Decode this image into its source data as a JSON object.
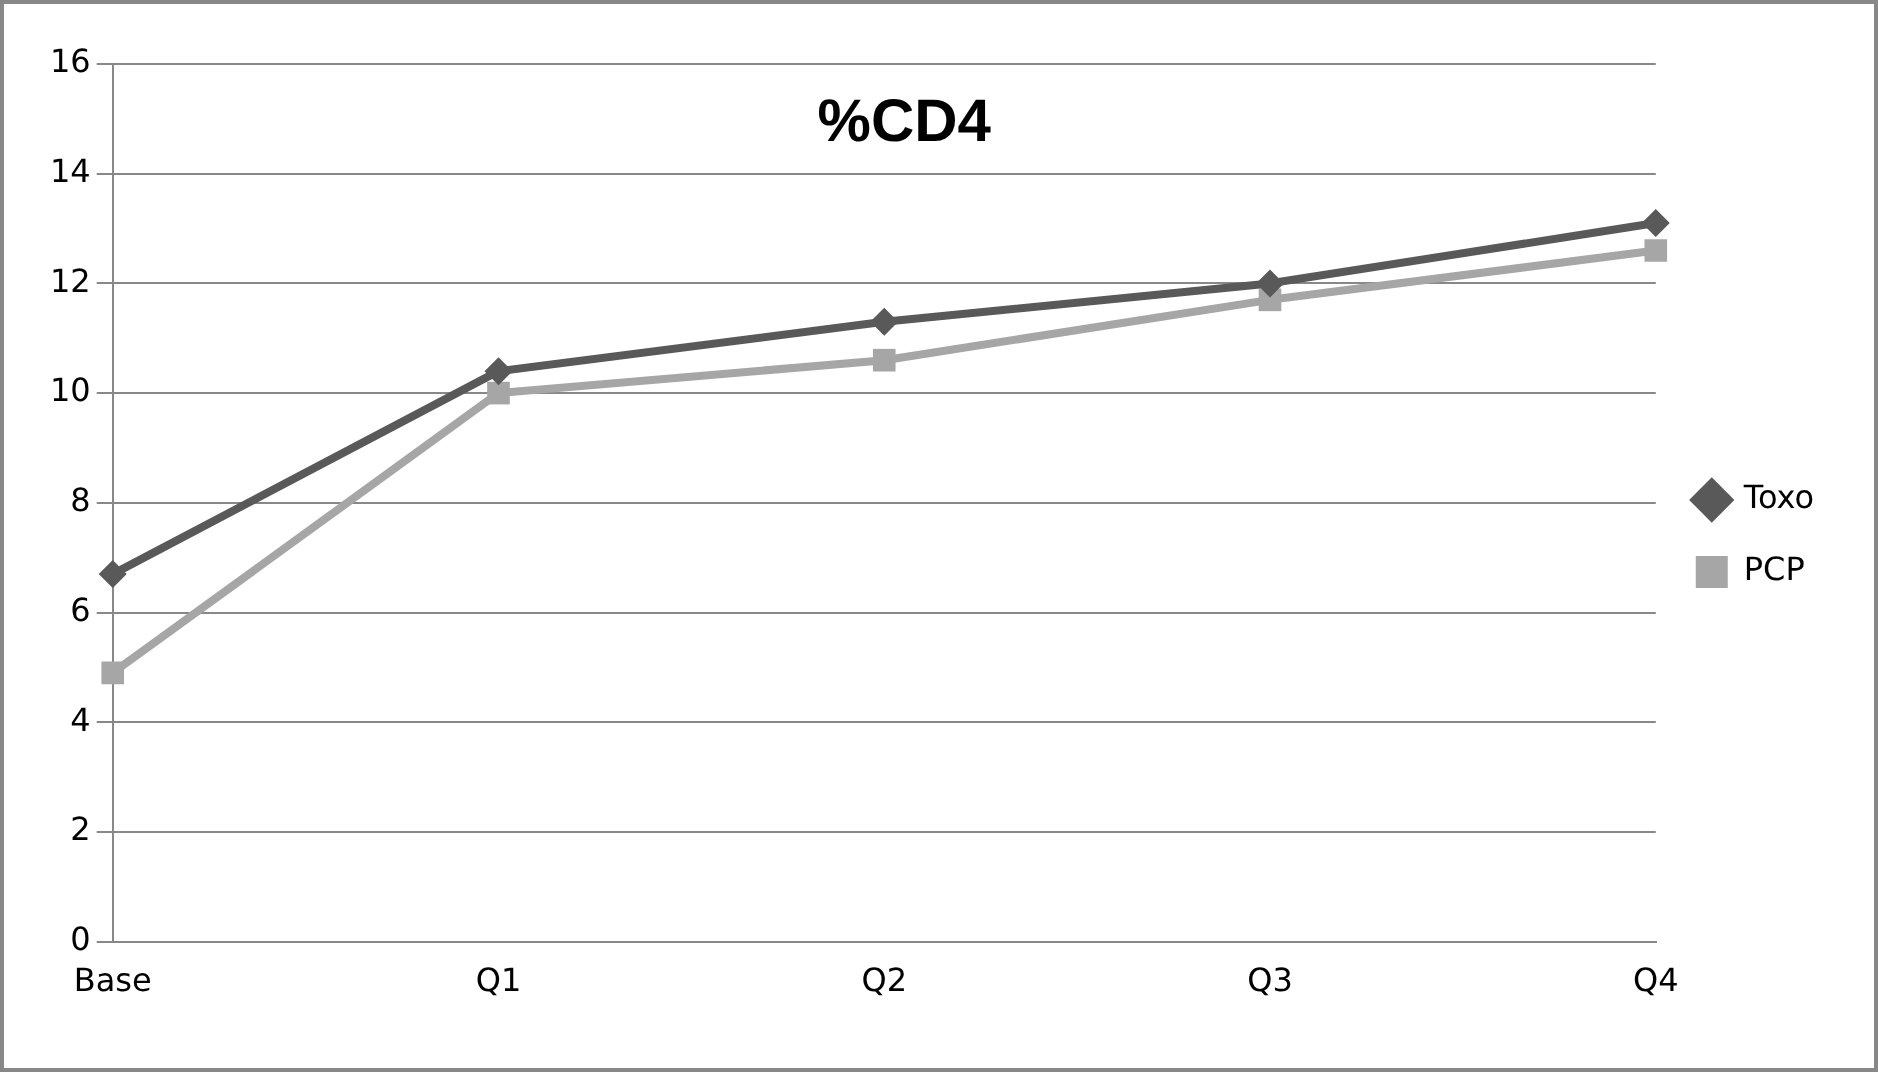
{
  "chart_data": {
    "type": "line",
    "title": "%CD4",
    "categories": [
      "Base",
      "Q1",
      "Q2",
      "Q3",
      "Q4"
    ],
    "series": [
      {
        "name": "Toxo",
        "color": "#595959",
        "marker": "diamond",
        "values": [
          6.7,
          10.4,
          11.3,
          12.0,
          13.1
        ]
      },
      {
        "name": "PCP",
        "color": "#a6a6a6",
        "marker": "square",
        "values": [
          4.9,
          10.0,
          10.6,
          11.7,
          12.6
        ]
      }
    ],
    "ylim": [
      0,
      16
    ],
    "yticks": [
      0,
      2,
      4,
      6,
      8,
      10,
      12,
      14,
      16
    ],
    "grid": "y",
    "legend": "right",
    "line_style": "solid"
  }
}
